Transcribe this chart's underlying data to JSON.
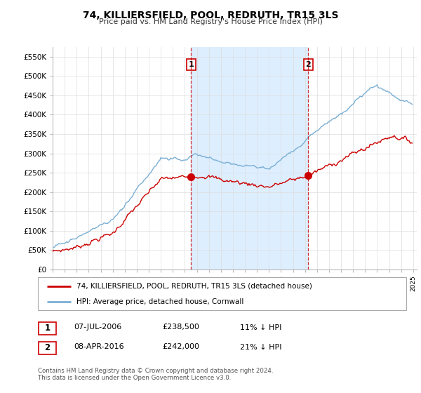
{
  "title": "74, KILLIERSFIELD, POOL, REDRUTH, TR15 3LS",
  "subtitle": "Price paid vs. HM Land Registry's House Price Index (HPI)",
  "ylabel_ticks": [
    "£0",
    "£50K",
    "£100K",
    "£150K",
    "£200K",
    "£250K",
    "£300K",
    "£350K",
    "£400K",
    "£450K",
    "£500K",
    "£550K"
  ],
  "ytick_values": [
    0,
    50000,
    100000,
    150000,
    200000,
    250000,
    300000,
    350000,
    400000,
    450000,
    500000,
    550000
  ],
  "ylim": [
    0,
    575000
  ],
  "sale1_date": 2006.52,
  "sale1_price": 238500,
  "sale2_date": 2016.27,
  "sale2_price": 242000,
  "red_color": "#cc0000",
  "blue_color": "#7bafd4",
  "shade_color": "#ddeeff",
  "vline_color": "#cc0000",
  "legend_line1": "74, KILLIERSFIELD, POOL, REDRUTH, TR15 3LS (detached house)",
  "legend_line2": "HPI: Average price, detached house, Cornwall",
  "table_row1": [
    "1",
    "07-JUL-2006",
    "£238,500",
    "11% ↓ HPI"
  ],
  "table_row2": [
    "2",
    "08-APR-2016",
    "£242,000",
    "21% ↓ HPI"
  ],
  "footer": "Contains HM Land Registry data © Crown copyright and database right 2024.\nThis data is licensed under the Open Government Licence v3.0.",
  "background_color": "#ffffff",
  "grid_color": "#dddddd"
}
